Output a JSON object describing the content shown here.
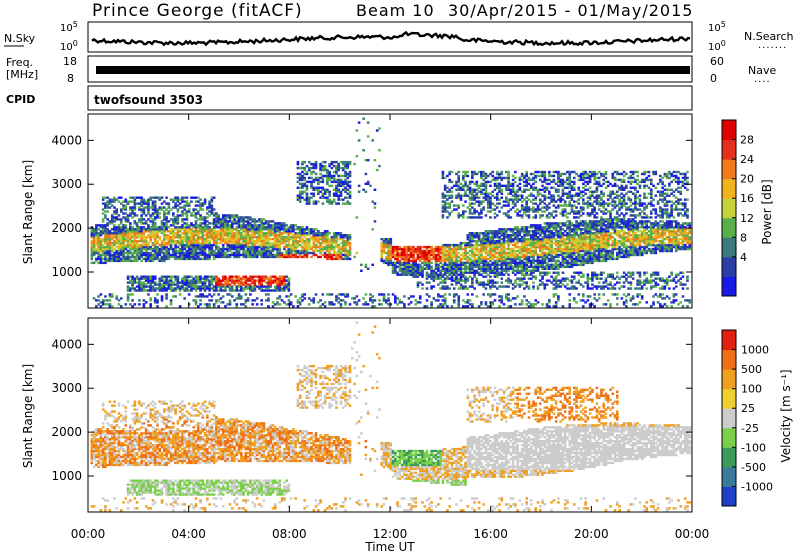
{
  "header": {
    "station": "Prince George (fitACF)",
    "beam": "Beam 10",
    "date_range": "30/Apr/2015 - 01/May/2015"
  },
  "panels": {
    "nsky": {
      "label": "N.Sky",
      "ticks": [
        "10^5",
        "10^0"
      ],
      "right_label": "N.Search",
      "right_ticks": [
        "10^5",
        "10^0"
      ],
      "right_dots": "......."
    },
    "freq": {
      "label_top": "Freq.",
      "label_bottom": "[MHz]",
      "ticks": [
        "18",
        "8"
      ],
      "right_label": "Nave",
      "right_ticks": [
        "60",
        "0"
      ],
      "right_dots": "...."
    },
    "cpid": {
      "label": "CPID",
      "value": "twofsound 3503"
    }
  },
  "chart_data": [
    {
      "type": "heatmap",
      "title": "",
      "quantity": "Power",
      "xlabel": "",
      "ylabel": "Slant Range [km]",
      "ylim": [
        180,
        4600
      ],
      "yticks": [
        1000,
        2000,
        3000,
        4000
      ],
      "xlim_hours": [
        0,
        24
      ],
      "colorbar": {
        "label": "Power [dB]",
        "ticks": [
          "28",
          "24",
          "20",
          "16",
          "12",
          "8",
          "4"
        ],
        "colors": [
          "#1a1ae6",
          "#2a3ea6",
          "#3a7a7a",
          "#59b04a",
          "#c6d23a",
          "#f2b21e",
          "#f07a1c",
          "#e4301c",
          "#e00000"
        ]
      },
      "echo_regions": [
        {
          "t": [
            0.2,
            23.8
          ],
          "r": [
            1100,
            2100
          ],
          "level": "mixed"
        },
        {
          "t": [
            5.0,
            7.8
          ],
          "r": [
            680,
            900
          ],
          "level": "strong"
        },
        {
          "t": [
            7.5,
            10.0
          ],
          "r": [
            1100,
            1400
          ],
          "level": "strong"
        },
        {
          "t": [
            8.5,
            10.5
          ],
          "r": [
            2600,
            3500
          ],
          "level": "mixed"
        },
        {
          "t": [
            12.0,
            14.0
          ],
          "r": [
            1200,
            1700
          ],
          "level": "strong"
        }
      ]
    },
    {
      "type": "heatmap",
      "title": "",
      "quantity": "Velocity",
      "xlabel": "Time UT",
      "ylabel": "Slant Range [km]",
      "ylim": [
        180,
        4600
      ],
      "yticks": [
        1000,
        2000,
        3000,
        4000
      ],
      "xlim_hours": [
        0,
        24
      ],
      "xticks": [
        "00:00",
        "04:00",
        "08:00",
        "12:00",
        "16:00",
        "20:00",
        "00:00"
      ],
      "colorbar": {
        "label": "Velocity [m s⁻¹]",
        "ticks": [
          "1000",
          "500",
          "100",
          "25",
          "-25",
          "-100",
          "-500",
          "-1000"
        ],
        "colors": [
          "#2040c8",
          "#3a7a9a",
          "#3c9a5a",
          "#7ad04a",
          "#cccccc",
          "#f0d030",
          "#f0a020",
          "#f07018",
          "#e02010"
        ]
      }
    }
  ]
}
